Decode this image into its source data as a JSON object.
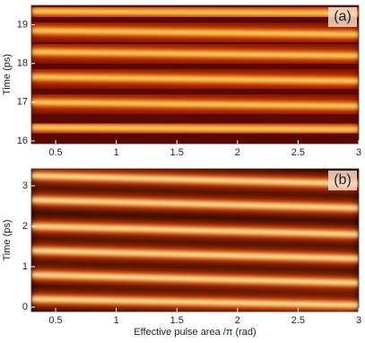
{
  "chart_data": [
    {
      "type": "heatmap",
      "label": "(a)",
      "ylabel": "Time (ps)",
      "x": [
        0.3,
        3
      ],
      "series": [
        {
          "values": [
            19.35,
            19.3
          ]
        },
        {
          "values": [
            18.85,
            18.75
          ]
        },
        {
          "values": [
            18.3,
            18.2
          ]
        },
        {
          "values": [
            17.65,
            17.55
          ]
        },
        {
          "values": [
            17.0,
            16.9
          ]
        },
        {
          "values": [
            16.35,
            16.3
          ]
        }
      ],
      "background": "#5a0800",
      "colors": [
        "#d83a00",
        "#ffe060"
      ],
      "xlim": [
        0.3,
        3
      ],
      "xticks": [
        0.5,
        1,
        1.5,
        2,
        2.5,
        3
      ],
      "ylim": [
        15.93,
        19.5
      ],
      "yticks": [
        16,
        17,
        18,
        19
      ]
    },
    {
      "type": "heatmap",
      "label": "(b)",
      "ylabel": "Time (ps)",
      "xlabel": "Effective pulse area /π  (rad)",
      "x": [
        0.3,
        3
      ],
      "series": [
        {
          "values": [
            3.25,
            3.05
          ]
        },
        {
          "values": [
            2.65,
            2.45
          ]
        },
        {
          "values": [
            2.0,
            1.8
          ]
        },
        {
          "values": [
            1.4,
            1.2
          ]
        },
        {
          "values": [
            0.8,
            0.6
          ]
        },
        {
          "values": [
            0.2,
            0.05
          ]
        }
      ],
      "background": "#1a0000",
      "colors": [
        "#e04000",
        "#fff2a0"
      ],
      "xlim": [
        0.3,
        3
      ],
      "xticks": [
        0.5,
        1,
        1.5,
        2,
        2.5,
        3
      ],
      "ylim": [
        -0.11,
        3.42
      ],
      "yticks": [
        0,
        1,
        2,
        3
      ]
    }
  ]
}
